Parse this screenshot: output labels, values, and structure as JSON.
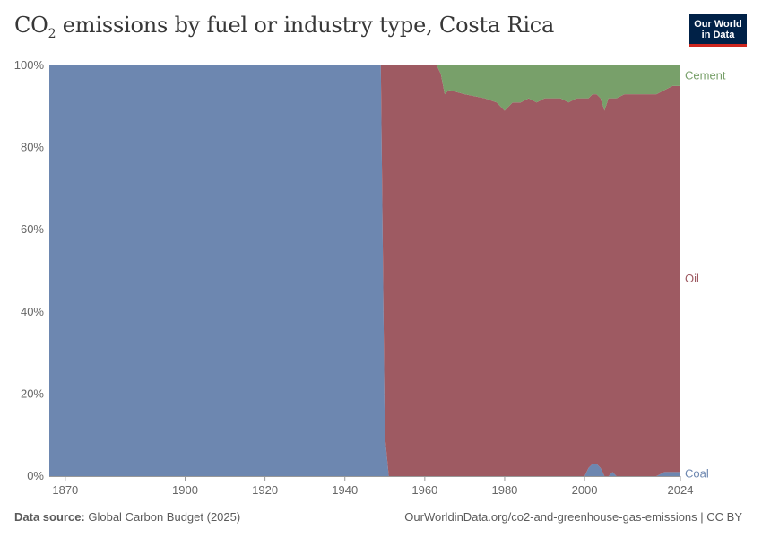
{
  "header": {
    "title_main": "CO",
    "title_sub": "2",
    "title_rest": " emissions by fuel or industry type, Costa Rica",
    "logo_line1": "Our World",
    "logo_line2": "in Data"
  },
  "footer": {
    "source_label": "Data source:",
    "source_text": " Global Carbon Budget (2025)",
    "credit": "OurWorldinData.org/co2-and-greenhouse-gas-emissions | CC BY"
  },
  "colors": {
    "coal": "#6d87b0",
    "oil": "#9e5a62",
    "cement": "#78a06a",
    "grid": "#dddddd"
  },
  "chart_data": {
    "type": "area",
    "stacked": "percent",
    "title": "CO₂ emissions by fuel or industry type, Costa Rica",
    "xlim": [
      1866,
      2024
    ],
    "ylim": [
      0,
      100
    ],
    "y_ticks": [
      0,
      20,
      40,
      60,
      80,
      100
    ],
    "y_tick_labels": [
      "0%",
      "20%",
      "40%",
      "60%",
      "80%",
      "100%"
    ],
    "x_ticks": [
      1870,
      1900,
      1920,
      1940,
      1960,
      1980,
      2000,
      2024
    ],
    "legend_position": "right",
    "x": [
      1866,
      1900,
      1949,
      1950,
      1951,
      1955,
      1960,
      1963,
      1964,
      1965,
      1966,
      1970,
      1975,
      1978,
      1980,
      1982,
      1984,
      1986,
      1988,
      1990,
      1992,
      1994,
      1996,
      1998,
      2000,
      2001,
      2002,
      2003,
      2004,
      2005,
      2006,
      2007,
      2008,
      2010,
      2012,
      2014,
      2016,
      2018,
      2020,
      2022,
      2024
    ],
    "series": [
      {
        "name": "Coal",
        "color": "#6d87b0",
        "values": [
          100,
          100,
          100,
          10,
          0,
          0,
          0,
          0,
          0,
          0,
          0,
          0,
          0,
          0,
          0,
          0,
          0,
          0,
          0,
          0,
          0,
          0,
          0,
          0,
          0,
          2,
          3,
          3,
          2,
          0,
          0,
          1,
          0,
          0,
          0,
          0,
          0,
          0,
          1,
          1,
          1
        ]
      },
      {
        "name": "Oil",
        "color": "#9e5a62",
        "values": [
          0,
          0,
          0,
          90,
          100,
          100,
          100,
          100,
          98,
          93,
          94,
          93,
          92,
          91,
          89,
          91,
          91,
          92,
          91,
          92,
          92,
          92,
          91,
          92,
          92,
          90,
          90,
          90,
          90,
          89,
          92,
          91,
          92,
          93,
          93,
          93,
          93,
          93,
          93,
          94,
          94
        ]
      },
      {
        "name": "Cement",
        "color": "#78a06a",
        "values": [
          0,
          0,
          0,
          0,
          0,
          0,
          0,
          0,
          2,
          7,
          6,
          7,
          8,
          9,
          11,
          9,
          9,
          8,
          9,
          8,
          8,
          8,
          9,
          8,
          8,
          8,
          7,
          7,
          8,
          11,
          8,
          8,
          8,
          7,
          7,
          7,
          7,
          7,
          6,
          5,
          5
        ]
      }
    ]
  }
}
